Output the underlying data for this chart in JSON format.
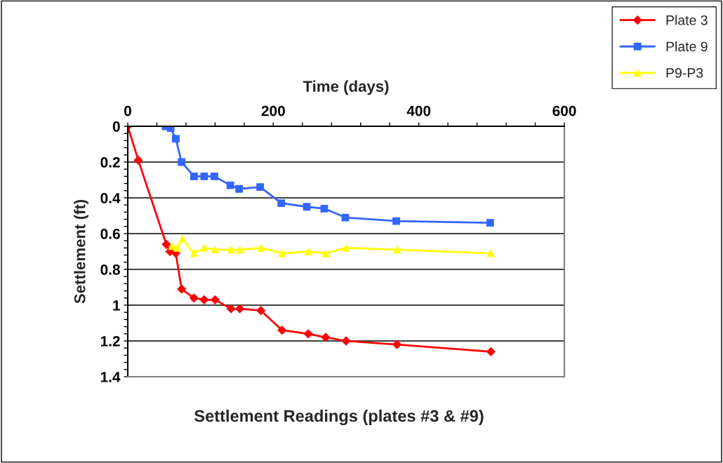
{
  "chart_data": {
    "type": "line",
    "title": "Settlement Readings (plates #3 & #9)",
    "xlabel": "Time (days)",
    "ylabel": "Settlement (ft)",
    "xlim": [
      0,
      600
    ],
    "ylim": [
      1.4,
      0
    ],
    "xticks": [
      0,
      {
        "value": 40,
        "label": null
      },
      {
        "value": 80,
        "label": null
      },
      {
        "value": 120,
        "label": null
      },
      {
        "value": 160,
        "label": null
      },
      200,
      {
        "value": 240,
        "label": null
      },
      {
        "value": 280,
        "label": null
      },
      {
        "value": 320,
        "label": null
      },
      {
        "value": 360,
        "label": null
      },
      400,
      {
        "value": 440,
        "label": null
      },
      {
        "value": 480,
        "label": null
      },
      {
        "value": 520,
        "label": null
      },
      {
        "value": 560,
        "label": null
      },
      600
    ],
    "yticks": [
      0,
      {
        "value": 0.04,
        "label": null
      },
      {
        "value": 0.08,
        "label": null
      },
      {
        "value": 0.12,
        "label": null
      },
      {
        "value": 0.16,
        "label": null
      },
      0.2,
      {
        "value": 0.24,
        "label": null
      },
      {
        "value": 0.28,
        "label": null
      },
      {
        "value": 0.32,
        "label": null
      },
      {
        "value": 0.36,
        "label": null
      },
      0.4,
      {
        "value": 0.44,
        "label": null
      },
      {
        "value": 0.48,
        "label": null
      },
      {
        "value": 0.52,
        "label": null
      },
      {
        "value": 0.56,
        "label": null
      },
      0.6,
      {
        "value": 0.64,
        "label": null
      },
      {
        "value": 0.68,
        "label": null
      },
      {
        "value": 0.72,
        "label": null
      },
      {
        "value": 0.76,
        "label": null
      },
      0.8,
      {
        "value": 0.84,
        "label": null
      },
      {
        "value": 0.88,
        "label": null
      },
      {
        "value": 0.92,
        "label": null
      },
      {
        "value": 0.96,
        "label": null
      },
      1,
      {
        "value": 1.04,
        "label": null
      },
      {
        "value": 1.08,
        "label": null
      },
      {
        "value": 1.12,
        "label": null
      },
      {
        "value": 1.16,
        "label": null
      },
      1.2,
      {
        "value": 1.24,
        "label": null
      },
      {
        "value": 1.28,
        "label": null
      },
      {
        "value": 1.32,
        "label": null
      },
      {
        "value": 1.36,
        "label": null
      },
      1.4
    ],
    "grid": "y",
    "legend": "top right",
    "line_style": "solid",
    "series": [
      {
        "name": "Plate 3",
        "color": "#ff0000",
        "marker": "diamond",
        "x": [
          0,
          14.5,
          53,
          58,
          66,
          74,
          91,
          105,
          120,
          142,
          154,
          183,
          212,
          248,
          272,
          300,
          370,
          499
        ],
        "values": [
          0,
          0.19,
          0.66,
          0.7,
          0.71,
          0.91,
          0.96,
          0.97,
          0.97,
          1.02,
          1.02,
          1.03,
          1.14,
          1.16,
          1.18,
          1.2,
          1.22,
          1.26
        ]
      },
      {
        "name": "Plate 9",
        "color": "#3366ff",
        "marker": "square",
        "x": [
          52,
          59,
          66,
          74,
          91,
          105,
          119,
          141,
          153,
          182,
          211,
          246,
          270,
          299,
          369,
          498
        ],
        "values": [
          0,
          0.01,
          0.07,
          0.2,
          0.28,
          0.28,
          0.28,
          0.33,
          0.35,
          0.34,
          0.43,
          0.45,
          0.46,
          0.51,
          0.53,
          0.54
        ]
      },
      {
        "name": "P9-P3",
        "color": "#ffff00",
        "marker": "triangle",
        "x": [
          61,
          68,
          75,
          91,
          105,
          120,
          142,
          154,
          183,
          212,
          248,
          272,
          300,
          370,
          499
        ],
        "values": [
          0.67,
          0.68,
          0.63,
          0.71,
          0.68,
          0.69,
          0.69,
          0.69,
          0.68,
          0.71,
          0.7,
          0.71,
          0.68,
          0.69,
          0.71
        ]
      }
    ]
  }
}
